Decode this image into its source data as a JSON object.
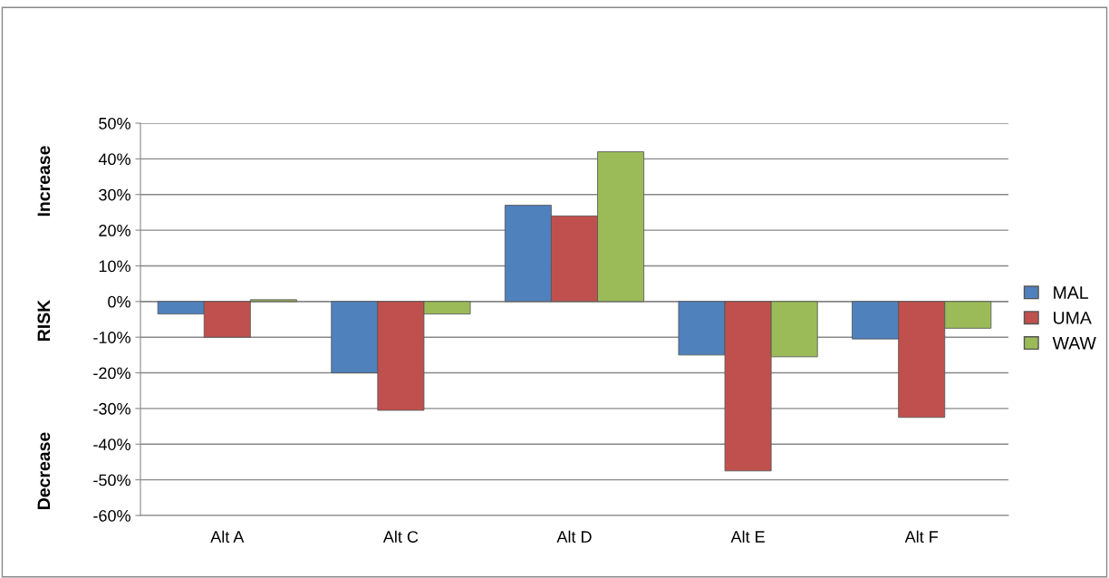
{
  "chart_data": {
    "type": "bar",
    "ylabel": "RISK",
    "annotations": [
      "Increase",
      "Decrease"
    ],
    "categories": [
      "Alt A",
      "Alt C",
      "Alt D",
      "Alt E",
      "Alt F"
    ],
    "series": [
      {
        "name": "MAL",
        "color": "#4f81bd",
        "values": [
          -3.5,
          -20,
          27,
          -15,
          -10.5
        ]
      },
      {
        "name": "UMA",
        "color": "#c0504d",
        "values": [
          -10,
          -30.5,
          24,
          -47.5,
          -32.5
        ]
      },
      {
        "name": "WAW",
        "color": "#9bbb59",
        "values": [
          0.5,
          -3.5,
          42,
          -15.5,
          -7.5
        ]
      }
    ],
    "ylim": [
      -60,
      50
    ],
    "yticks": [
      {
        "value": -60,
        "label": "-60%"
      },
      {
        "value": -50,
        "label": "-50%"
      },
      {
        "value": -40,
        "label": "-40%"
      },
      {
        "value": -30,
        "label": "-30%"
      },
      {
        "value": -20,
        "label": "-20%"
      },
      {
        "value": -10,
        "label": "-10%"
      },
      {
        "value": 0,
        "label": "0%"
      },
      {
        "value": 10,
        "label": "10%"
      },
      {
        "value": 20,
        "label": "20%"
      },
      {
        "value": 30,
        "label": "30%"
      },
      {
        "value": 40,
        "label": "40%"
      },
      {
        "value": 50,
        "label": "50%"
      }
    ],
    "grid": "y",
    "legend": "right"
  }
}
